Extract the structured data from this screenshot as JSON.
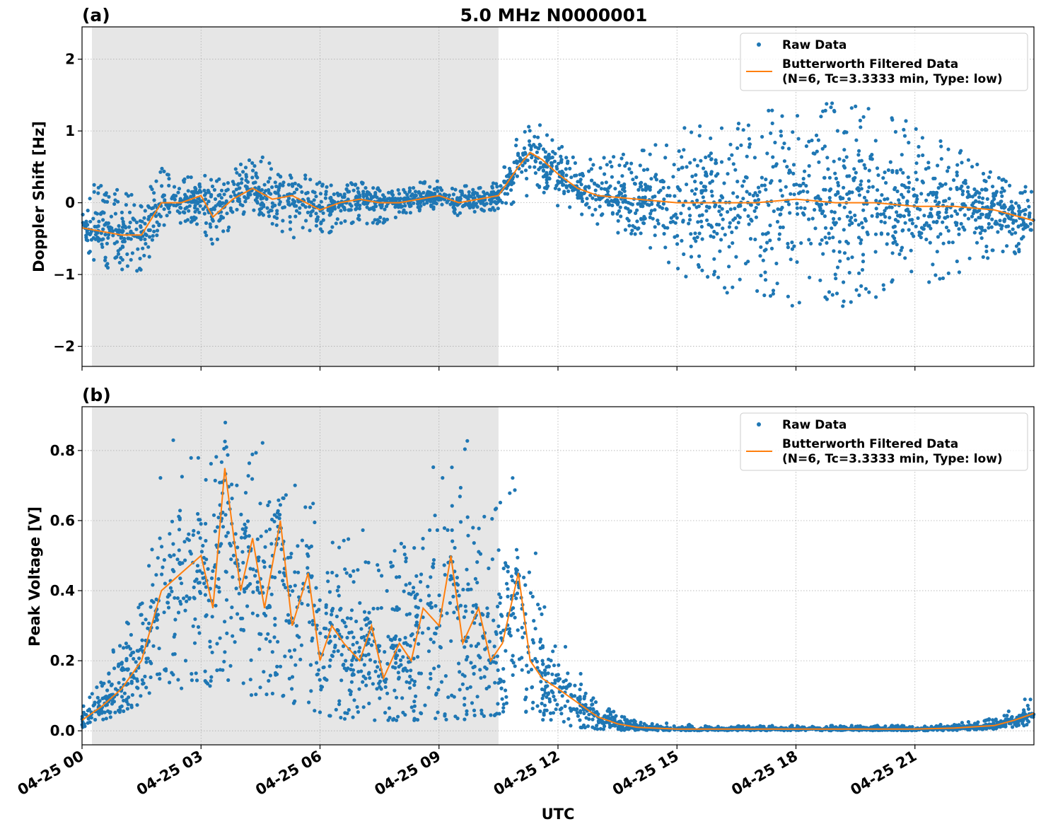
{
  "figure": {
    "title": "5.0 MHz N0000001",
    "xlabel": "UTC",
    "x_ticks": [
      "04-25 00",
      "04-25 03",
      "04-25 06",
      "04-25 09",
      "04-25 12",
      "04-25 15",
      "04-25 18",
      "04-25 21"
    ],
    "colors": {
      "raw": "#1f77b4",
      "filtered": "#ff7f0e",
      "shade": "#e6e6e6",
      "grid": "#b0b0b0"
    }
  },
  "chart_data": [
    {
      "type": "scatter",
      "panel_label": "(a)",
      "ylabel": "Doppler Shift [Hz]",
      "x_unit": "hours UTC, 2024-04-25",
      "xlim": [
        0,
        24
      ],
      "ylim": [
        -2.28,
        2.45
      ],
      "y_ticks": [
        -2,
        -1,
        0,
        1,
        2
      ],
      "y_tick_labels": [
        "−2",
        "−1",
        "0",
        "1",
        "2"
      ],
      "grid": true,
      "shaded_interval_hours": [
        0.25,
        10.5
      ],
      "legend": {
        "placement": "top-right",
        "raw_label": "Raw Data",
        "filtered_label_1": "Butterworth Filtered Data",
        "filtered_label_2": "(N=6, Tc=3.3333 min, Type: low)"
      },
      "filtered_series": {
        "name": "Butterworth Filtered Data",
        "x": [
          0,
          0.5,
          1,
          1.5,
          2,
          2.5,
          3,
          3.3,
          3.8,
          4.3,
          4.8,
          5.3,
          6,
          6.5,
          7,
          7.5,
          8,
          8.5,
          9,
          9.5,
          10,
          10.5,
          11,
          11.3,
          11.6,
          12,
          12.5,
          13,
          14,
          15,
          16,
          17,
          18,
          19,
          20,
          21,
          22,
          23,
          24
        ],
        "y": [
          -0.35,
          -0.4,
          -0.45,
          -0.45,
          0,
          0,
          0.1,
          -0.2,
          0.05,
          0.2,
          0.05,
          0.1,
          -0.1,
          0,
          0.05,
          0,
          0,
          0.05,
          0.1,
          0,
          0.05,
          0.1,
          0.5,
          0.7,
          0.6,
          0.4,
          0.2,
          0.1,
          0.05,
          0,
          0,
          0,
          0.05,
          0,
          0,
          -0.05,
          -0.05,
          -0.1,
          -0.25
        ]
      },
      "raw_envelope": {
        "x": [
          0,
          0.5,
          1,
          1.5,
          2,
          2.5,
          3,
          3.3,
          3.8,
          4.3,
          4.8,
          5.3,
          6,
          6.5,
          7,
          7.5,
          8,
          8.5,
          9,
          9.5,
          10,
          10.5,
          11,
          11.3,
          11.6,
          12,
          12.5,
          13,
          14,
          15,
          16,
          17,
          18,
          19,
          20,
          21,
          22,
          23,
          24
        ],
        "y_low": [
          -0.9,
          -0.9,
          -0.95,
          -1,
          -0.4,
          -0.3,
          -0.3,
          -0.7,
          -0.3,
          -0.2,
          -0.3,
          -0.5,
          -0.5,
          -0.35,
          -0.3,
          -0.3,
          -0.2,
          -0.15,
          -0.1,
          -0.2,
          -0.15,
          -0.1,
          0,
          0.1,
          0,
          -0.05,
          -0.15,
          -0.3,
          -0.6,
          -1.1,
          -1.3,
          -1.4,
          -1.5,
          -1.5,
          -1.4,
          -1.2,
          -1,
          -0.8,
          -0.7
        ],
        "y_high": [
          0.2,
          0.3,
          0.2,
          0.1,
          0.5,
          0.3,
          0.5,
          0.3,
          0.5,
          0.7,
          0.6,
          0.5,
          0.3,
          0.25,
          0.3,
          0.2,
          0.2,
          0.3,
          0.3,
          0.25,
          0.25,
          0.3,
          1,
          1.2,
          1.1,
          0.9,
          0.7,
          0.6,
          0.8,
          1.1,
          1.2,
          1.3,
          1.4,
          1.4,
          1.3,
          1.1,
          0.8,
          0.4,
          0.2
        ]
      }
    },
    {
      "type": "scatter",
      "panel_label": "(b)",
      "ylabel": "Peak Voltage [V]",
      "x_unit": "hours UTC, 2024-04-25",
      "xlim": [
        0,
        24
      ],
      "ylim": [
        -0.04,
        0.925
      ],
      "y_ticks": [
        0.0,
        0.2,
        0.4,
        0.6,
        0.8
      ],
      "y_tick_labels": [
        "0.0",
        "0.2",
        "0.4",
        "0.6",
        "0.8"
      ],
      "grid": true,
      "shaded_interval_hours": [
        0.25,
        10.5
      ],
      "legend": {
        "placement": "top-right",
        "raw_label": "Raw Data",
        "filtered_label_1": "Butterworth Filtered Data",
        "filtered_label_2": "(N=6, Tc=3.3333 min, Type: low)"
      },
      "filtered_series": {
        "name": "Butterworth Filtered Data",
        "x": [
          0,
          0.5,
          1,
          1.5,
          2,
          2.5,
          3,
          3.3,
          3.6,
          4,
          4.3,
          4.6,
          5,
          5.3,
          5.7,
          6,
          6.3,
          6.6,
          7,
          7.3,
          7.6,
          8,
          8.3,
          8.6,
          9,
          9.3,
          9.6,
          10,
          10.3,
          10.6,
          11,
          11.3,
          11.6,
          12,
          12.5,
          13,
          13.5,
          14,
          15,
          16,
          17,
          18,
          19,
          20,
          21,
          22,
          23,
          23.5,
          24
        ],
        "y": [
          0.03,
          0.07,
          0.12,
          0.2,
          0.4,
          0.45,
          0.5,
          0.35,
          0.75,
          0.4,
          0.55,
          0.35,
          0.6,
          0.3,
          0.45,
          0.2,
          0.3,
          0.25,
          0.2,
          0.3,
          0.15,
          0.25,
          0.2,
          0.35,
          0.3,
          0.5,
          0.25,
          0.35,
          0.2,
          0.25,
          0.45,
          0.2,
          0.15,
          0.12,
          0.08,
          0.04,
          0.02,
          0.01,
          0.005,
          0.005,
          0.005,
          0.005,
          0.005,
          0.005,
          0.005,
          0.008,
          0.015,
          0.03,
          0.05
        ]
      },
      "raw_envelope": {
        "x": [
          0,
          0.5,
          1,
          1.5,
          2,
          2.5,
          3,
          3.3,
          3.6,
          4,
          4.3,
          4.6,
          5,
          5.3,
          5.7,
          6,
          6.3,
          6.6,
          7,
          7.3,
          7.6,
          8,
          8.3,
          8.6,
          9,
          9.3,
          9.6,
          10,
          10.3,
          10.6,
          11,
          11.3,
          11.6,
          12,
          12.5,
          13,
          13.5,
          14,
          15,
          16,
          17,
          18,
          19,
          20,
          21,
          22,
          23,
          23.5,
          24
        ],
        "y_low": [
          0.01,
          0.03,
          0.05,
          0.08,
          0.15,
          0.12,
          0.15,
          0.12,
          0.15,
          0.12,
          0.1,
          0.1,
          0.1,
          0.08,
          0.06,
          0.05,
          0.04,
          0.03,
          0.03,
          0.03,
          0.03,
          0.03,
          0.03,
          0.03,
          0.03,
          0.03,
          0.03,
          0.03,
          0.04,
          0.05,
          0.06,
          0.05,
          0.03,
          0.02,
          0.01,
          0.005,
          0.002,
          0.001,
          0.001,
          0.001,
          0.001,
          0.001,
          0.001,
          0.001,
          0.001,
          0.001,
          0.005,
          0.01,
          0.02
        ],
        "y_high": [
          0.08,
          0.15,
          0.3,
          0.4,
          0.8,
          0.85,
          0.85,
          0.8,
          0.88,
          0.87,
          0.86,
          0.84,
          0.85,
          0.8,
          0.7,
          0.65,
          0.6,
          0.55,
          0.6,
          0.55,
          0.45,
          0.55,
          0.5,
          0.6,
          0.87,
          0.75,
          0.88,
          0.7,
          0.65,
          0.78,
          0.8,
          0.6,
          0.45,
          0.3,
          0.2,
          0.08,
          0.05,
          0.03,
          0.02,
          0.015,
          0.015,
          0.015,
          0.015,
          0.015,
          0.015,
          0.02,
          0.04,
          0.07,
          0.11
        ]
      }
    }
  ]
}
